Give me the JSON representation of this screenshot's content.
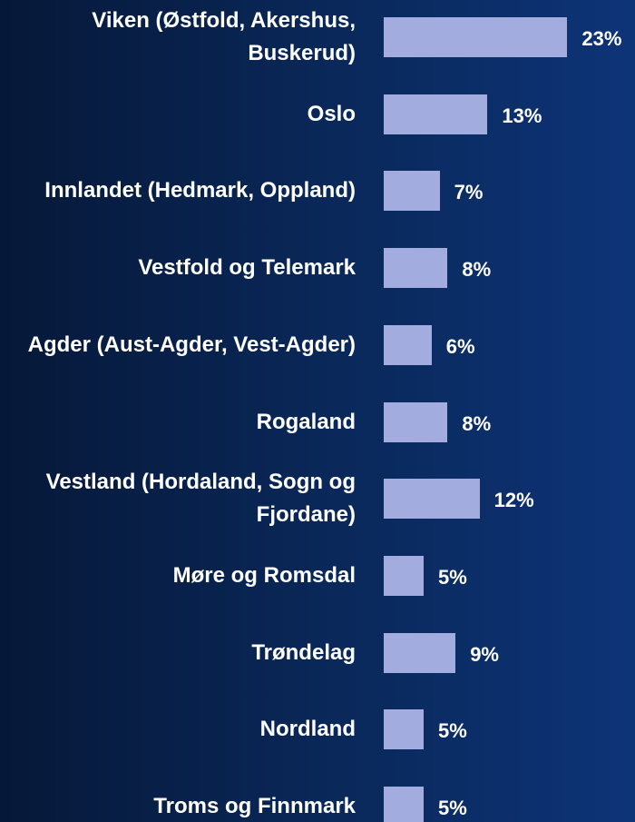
{
  "chart_data": {
    "type": "bar",
    "orientation": "horizontal",
    "categories": [
      "Viken (Østfold, Akershus, Buskerud)",
      "Oslo",
      "Innlandet (Hedmark, Oppland)",
      "Vestfold og Telemark",
      "Agder (Aust-Agder, Vest-Agder)",
      "Rogaland",
      "Vestland (Hordaland, Sogn og Fjordane)",
      "Møre og Romsdal",
      "Trøndelag",
      "Nordland",
      "Troms og Finnmark"
    ],
    "values": [
      23,
      13,
      7,
      8,
      6,
      8,
      12,
      5,
      9,
      5,
      5
    ],
    "value_labels": [
      "23%",
      "13%",
      "7%",
      "8%",
      "6%",
      "8%",
      "12%",
      "5%",
      "9%",
      "5%",
      "5%"
    ],
    "color": "#a3acdf"
  }
}
